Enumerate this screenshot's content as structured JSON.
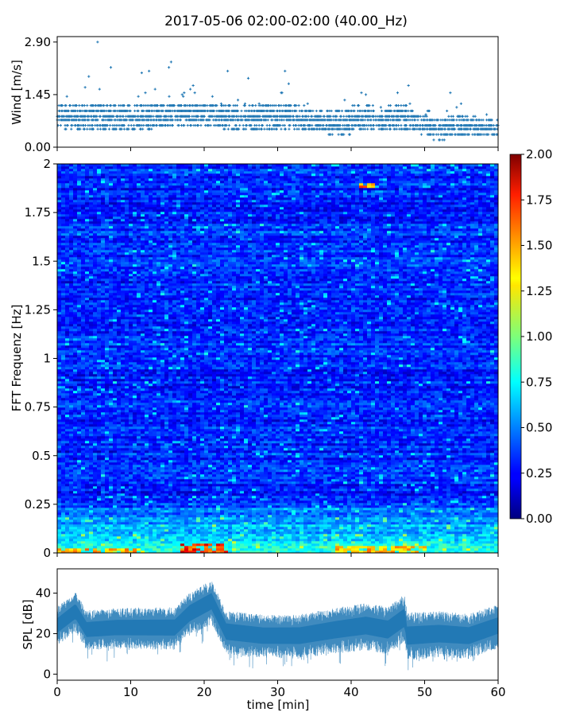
{
  "title": "2017-05-06 02:00-02:00 (40.00_Hz)",
  "colors": {
    "series": "#1f77b4",
    "frame": "#000000"
  },
  "chart_data": [
    {
      "id": "wind",
      "type": "scatter",
      "ylabel": "Wind [m/s]",
      "xlim": [
        0,
        60
      ],
      "ylim": [
        0,
        3.05
      ],
      "yticks": [
        "0.00",
        "1.45",
        "2.90"
      ],
      "ytick_values": [
        0,
        1.45,
        2.9
      ],
      "marker": "+",
      "level_values": [
        0.2,
        0.35,
        0.5,
        0.6,
        0.75,
        0.85,
        1.0,
        1.15
      ],
      "outliers": [
        {
          "x": 5.5,
          "y": 2.9
        },
        {
          "x": 15.5,
          "y": 2.35
        },
        {
          "x": 15.2,
          "y": 2.2
        },
        {
          "x": 7.3,
          "y": 2.2
        },
        {
          "x": 23.2,
          "y": 2.1
        },
        {
          "x": 31.0,
          "y": 2.1
        },
        {
          "x": 11.5,
          "y": 2.05
        },
        {
          "x": 12.5,
          "y": 2.1
        },
        {
          "x": 4.3,
          "y": 1.95
        },
        {
          "x": 26.0,
          "y": 1.9
        },
        {
          "x": 31.5,
          "y": 1.75
        },
        {
          "x": 47.8,
          "y": 1.7
        },
        {
          "x": 53.5,
          "y": 1.5
        },
        {
          "x": 3.8,
          "y": 1.65
        },
        {
          "x": 18.5,
          "y": 1.7
        },
        {
          "x": 42.0,
          "y": 1.45
        },
        {
          "x": 17.0,
          "y": 1.45
        }
      ],
      "envelope": [
        {
          "x": 0,
          "hi": 1.15,
          "lo": 0.55
        },
        {
          "x": 3,
          "hi": 1.3,
          "lo": 0.4
        },
        {
          "x": 5,
          "hi": 1.5,
          "lo": 0.5
        },
        {
          "x": 8,
          "hi": 1.3,
          "lo": 0.5
        },
        {
          "x": 11,
          "hi": 1.25,
          "lo": 0.45
        },
        {
          "x": 13,
          "hi": 1.45,
          "lo": 0.5
        },
        {
          "x": 16,
          "hi": 1.4,
          "lo": 0.55
        },
        {
          "x": 19,
          "hi": 1.35,
          "lo": 0.6
        },
        {
          "x": 22,
          "hi": 1.25,
          "lo": 0.5
        },
        {
          "x": 25,
          "hi": 1.15,
          "lo": 0.45
        },
        {
          "x": 28,
          "hi": 1.2,
          "lo": 0.45
        },
        {
          "x": 31,
          "hi": 1.4,
          "lo": 0.5
        },
        {
          "x": 34,
          "hi": 1.15,
          "lo": 0.45
        },
        {
          "x": 37,
          "hi": 1.0,
          "lo": 0.3
        },
        {
          "x": 40,
          "hi": 1.15,
          "lo": 0.35
        },
        {
          "x": 42,
          "hi": 1.4,
          "lo": 0.45
        },
        {
          "x": 44,
          "hi": 1.05,
          "lo": 0.4
        },
        {
          "x": 47,
          "hi": 1.35,
          "lo": 0.45
        },
        {
          "x": 49,
          "hi": 1.0,
          "lo": 0.35
        },
        {
          "x": 51,
          "hi": 0.8,
          "lo": 0.2
        },
        {
          "x": 53,
          "hi": 0.85,
          "lo": 0.2
        },
        {
          "x": 55,
          "hi": 0.95,
          "lo": 0.25
        },
        {
          "x": 58,
          "hi": 0.8,
          "lo": 0.25
        },
        {
          "x": 60,
          "hi": 0.75,
          "lo": 0.2
        }
      ]
    },
    {
      "id": "spectrogram",
      "type": "heatmap",
      "ylabel": "FFT Frequenz [Hz]",
      "xlim": [
        0,
        60
      ],
      "ylim": [
        0,
        2
      ],
      "yticks": [
        "0",
        "0.25",
        "0.5",
        "0.75",
        "1",
        "1.25",
        "1.5",
        "1.75",
        "2"
      ],
      "ytick_values": [
        0,
        0.25,
        0.5,
        0.75,
        1,
        1.25,
        1.5,
        1.75,
        2
      ],
      "colormap": "jet",
      "clim": [
        0,
        2
      ],
      "colorbar_ticks": [
        "0.00",
        "0.25",
        "0.50",
        "0.75",
        "1.00",
        "1.25",
        "1.50",
        "1.75",
        "2.00"
      ],
      "colorbar_tick_values": [
        0,
        0.25,
        0.5,
        0.75,
        1,
        1.25,
        1.5,
        1.75,
        2
      ],
      "background_level": 0.3,
      "hotspots": [
        {
          "x0": 17,
          "x1": 23,
          "f0": 0,
          "f1": 0.05,
          "level": 1.8
        },
        {
          "x0": 0,
          "x1": 12,
          "f0": 0,
          "f1": 0.03,
          "level": 1.5
        },
        {
          "x0": 38,
          "x1": 50,
          "f0": 0,
          "f1": 0.04,
          "level": 1.5
        },
        {
          "x0": 41,
          "x1": 43,
          "f0": 1.88,
          "f1": 1.9,
          "level": 1.6
        }
      ]
    },
    {
      "id": "spl",
      "type": "area",
      "ylabel": "SPL [dB]",
      "xlabel": "time [min]",
      "xlim": [
        0,
        60
      ],
      "ylim": [
        -3,
        52
      ],
      "xticks": [
        "0",
        "10",
        "20",
        "30",
        "40",
        "50",
        "60"
      ],
      "xtick_values": [
        0,
        10,
        20,
        30,
        40,
        50,
        60
      ],
      "yticks": [
        "0",
        "20",
        "40"
      ],
      "ytick_values": [
        0,
        20,
        40
      ],
      "center": [
        {
          "x": 0,
          "y": 24
        },
        {
          "x": 2.5,
          "y": 31
        },
        {
          "x": 4,
          "y": 22
        },
        {
          "x": 8,
          "y": 23
        },
        {
          "x": 13,
          "y": 23
        },
        {
          "x": 16,
          "y": 23
        },
        {
          "x": 18,
          "y": 30
        },
        {
          "x": 21,
          "y": 36
        },
        {
          "x": 23,
          "y": 21
        },
        {
          "x": 28,
          "y": 19
        },
        {
          "x": 33,
          "y": 19
        },
        {
          "x": 38,
          "y": 22
        },
        {
          "x": 42,
          "y": 24
        },
        {
          "x": 45,
          "y": 22
        },
        {
          "x": 47.3,
          "y": 28
        },
        {
          "x": 47.6,
          "y": 19
        },
        {
          "x": 52,
          "y": 20
        },
        {
          "x": 56,
          "y": 19
        },
        {
          "x": 60,
          "y": 24
        }
      ],
      "half_width": [
        {
          "x": 0,
          "w": 8
        },
        {
          "x": 20,
          "w": 9
        },
        {
          "x": 30,
          "w": 9
        },
        {
          "x": 47,
          "w": 10
        },
        {
          "x": 60,
          "w": 9
        }
      ]
    }
  ]
}
